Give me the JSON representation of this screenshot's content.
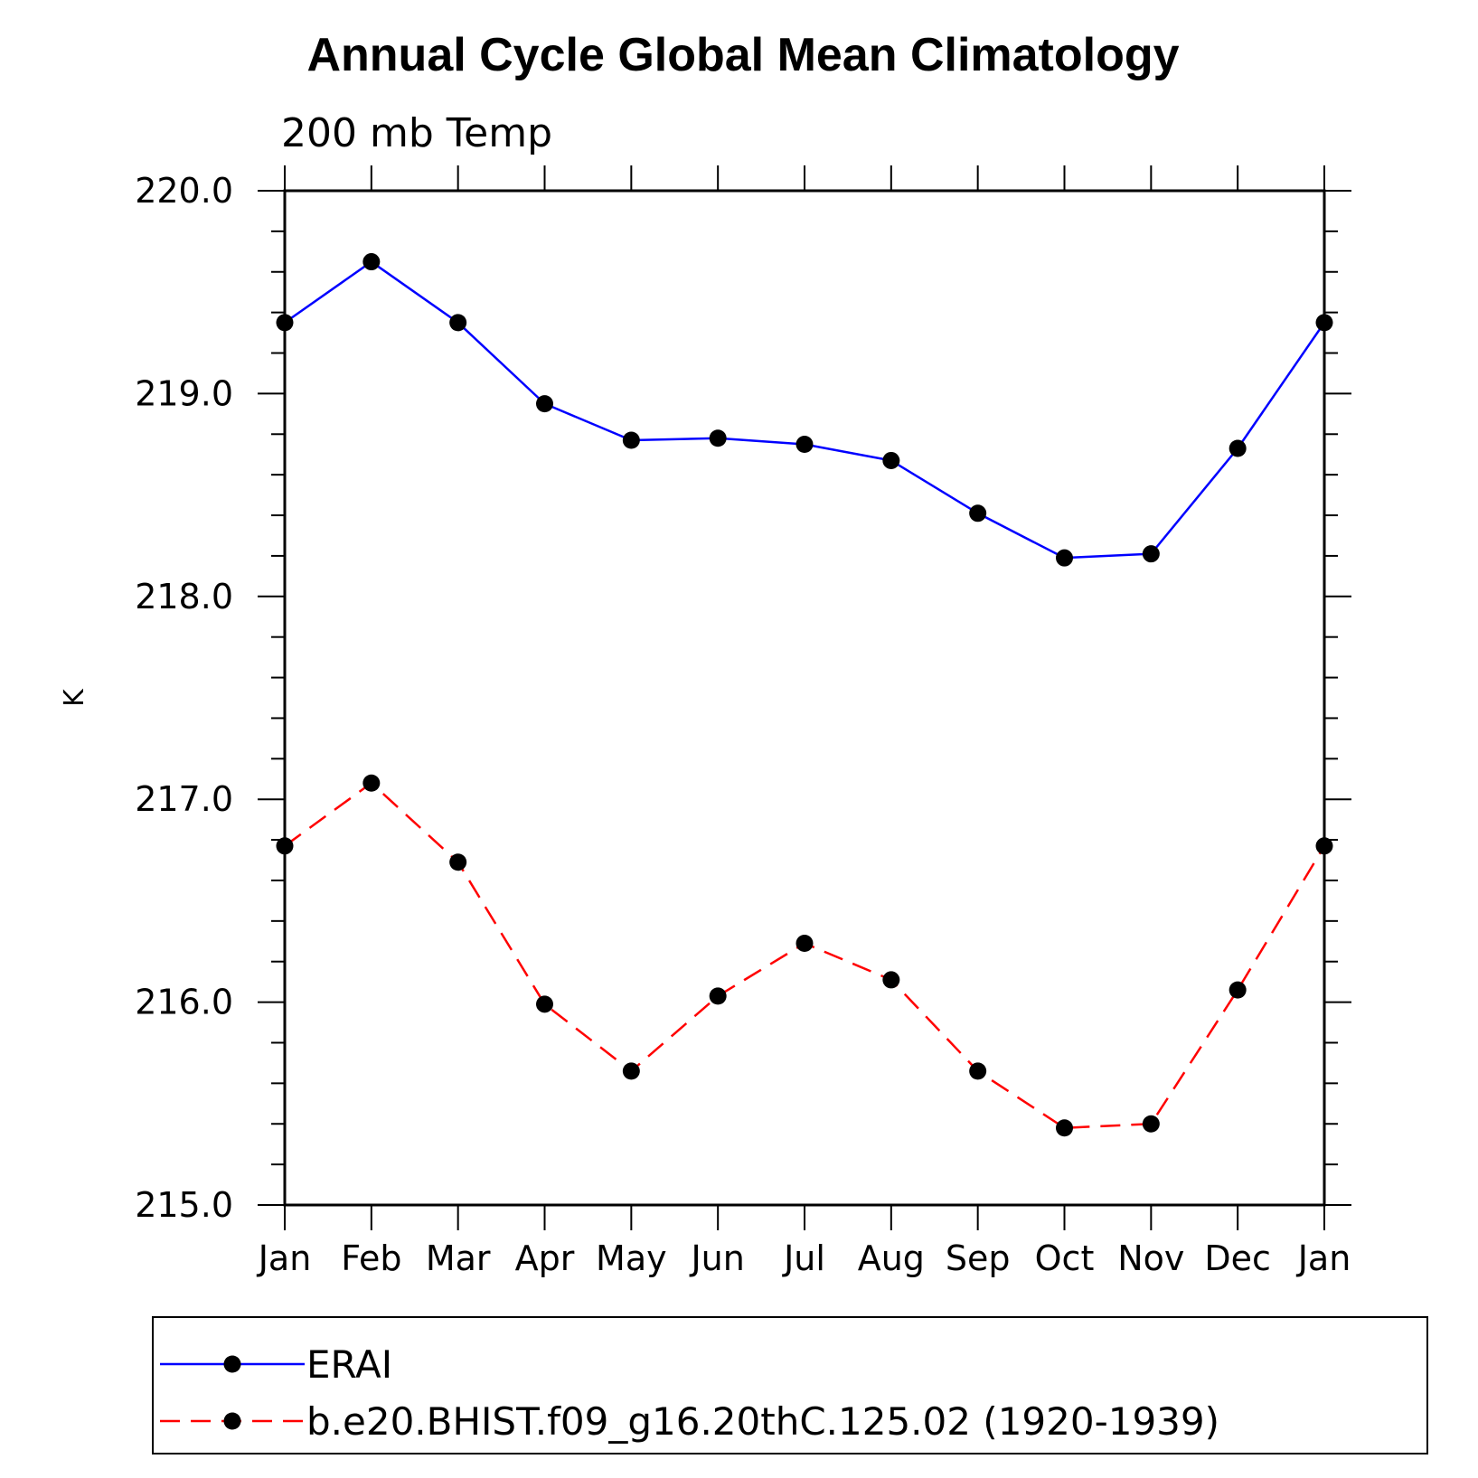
{
  "chart_data": {
    "type": "line",
    "title": "Annual Cycle Global Mean Climatology",
    "subtitle": "200 mb Temp",
    "xlabel": "",
    "ylabel": "K",
    "categories": [
      "Jan",
      "Feb",
      "Mar",
      "Apr",
      "May",
      "Jun",
      "Jul",
      "Aug",
      "Sep",
      "Oct",
      "Nov",
      "Dec",
      "Jan"
    ],
    "ylim": [
      215.0,
      220.0
    ],
    "yticks": [
      "215.0",
      "216.0",
      "217.0",
      "218.0",
      "219.0",
      "220.0"
    ],
    "grid": false,
    "legend_position": "bottom",
    "series": [
      {
        "name": "ERAI",
        "color": "#0000ff",
        "line_style": "solid",
        "marker": "filled-circle",
        "values": [
          219.35,
          219.65,
          219.35,
          218.95,
          218.77,
          218.78,
          218.75,
          218.67,
          218.41,
          218.19,
          218.21,
          218.73,
          219.35
        ]
      },
      {
        "name": "b.e20.BHIST.f09_g16.20thC.125.02 (1920-1939)",
        "color": "#ff0000",
        "line_style": "dashed",
        "marker": "filled-circle",
        "values": [
          216.77,
          217.08,
          216.69,
          215.99,
          215.66,
          216.03,
          216.29,
          216.11,
          215.66,
          215.38,
          215.4,
          216.06,
          216.77
        ]
      }
    ]
  }
}
